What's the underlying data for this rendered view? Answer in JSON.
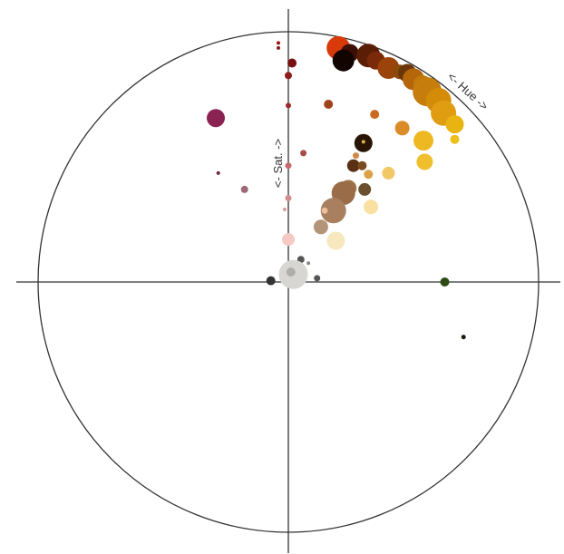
{
  "chart_data": {
    "type": "scatter",
    "title": "",
    "polar": true,
    "labels": {
      "hue": "<- Hue ->",
      "saturation": "<- Sat. ->"
    },
    "x_range": [
      -1,
      1
    ],
    "y_range": [
      -1,
      1
    ],
    "points": [
      {
        "x": -0.04,
        "y": 0.955,
        "r": 2,
        "color": "#a01010"
      },
      {
        "x": -0.04,
        "y": 0.935,
        "r": 2,
        "color": "#8b1a1a"
      },
      {
        "x": 0.015,
        "y": 0.875,
        "r": 5,
        "color": "#7a0f0f"
      },
      {
        "x": 0.0,
        "y": 0.825,
        "r": 4,
        "color": "#8e1e1e"
      },
      {
        "x": 0.0,
        "y": 0.705,
        "r": 3,
        "color": "#9b2a2a"
      },
      {
        "x": -0.29,
        "y": 0.655,
        "r": 10,
        "color": "#8b2352"
      },
      {
        "x": -0.28,
        "y": 0.435,
        "r": 2,
        "color": "#6a2a3a"
      },
      {
        "x": -0.175,
        "y": 0.37,
        "r": 4,
        "color": "#a06878"
      },
      {
        "x": 0.06,
        "y": 0.515,
        "r": 3.5,
        "color": "#a84b4b"
      },
      {
        "x": 0.0,
        "y": 0.465,
        "r": 3.5,
        "color": "#c46a6a"
      },
      {
        "x": 0.0,
        "y": 0.335,
        "r": 3.5,
        "color": "#d48c8c"
      },
      {
        "x": -0.015,
        "y": 0.29,
        "r": 2,
        "color": "#e09a9a"
      },
      {
        "x": 0.0,
        "y": 0.17,
        "r": 7,
        "color": "#f6c9c4"
      },
      {
        "x": 0.16,
        "y": 0.71,
        "r": 5,
        "color": "#a0421c"
      },
      {
        "x": 0.2,
        "y": 0.935,
        "r": 13,
        "color": "#d93a0a"
      },
      {
        "x": 0.245,
        "y": 0.915,
        "r": 10,
        "color": "#3b0f05"
      },
      {
        "x": 0.22,
        "y": 0.885,
        "r": 12,
        "color": "#120400"
      },
      {
        "x": 0.32,
        "y": 0.905,
        "r": 13,
        "color": "#5a1e05"
      },
      {
        "x": 0.35,
        "y": 0.885,
        "r": 10,
        "color": "#7a2a08"
      },
      {
        "x": 0.4,
        "y": 0.855,
        "r": 12,
        "color": "#9b4308"
      },
      {
        "x": 0.445,
        "y": 0.84,
        "r": 8,
        "color": "#8a4a0a"
      },
      {
        "x": 0.475,
        "y": 0.835,
        "r": 10,
        "color": "#6b3508"
      },
      {
        "x": 0.5,
        "y": 0.81,
        "r": 12,
        "color": "#b5650a"
      },
      {
        "x": 0.535,
        "y": 0.79,
        "r": 10,
        "color": "#c07a0a"
      },
      {
        "x": 0.555,
        "y": 0.76,
        "r": 16,
        "color": "#c67d0b"
      },
      {
        "x": 0.6,
        "y": 0.725,
        "r": 14,
        "color": "#d48b08"
      },
      {
        "x": 0.62,
        "y": 0.675,
        "r": 14,
        "color": "#e09d12"
      },
      {
        "x": 0.665,
        "y": 0.63,
        "r": 10,
        "color": "#e8b412"
      },
      {
        "x": 0.345,
        "y": 0.67,
        "r": 5,
        "color": "#c96a20"
      },
      {
        "x": 0.455,
        "y": 0.615,
        "r": 8,
        "color": "#d98c28"
      },
      {
        "x": 0.54,
        "y": 0.565,
        "r": 11,
        "color": "#eeb823"
      },
      {
        "x": 0.665,
        "y": 0.57,
        "r": 5,
        "color": "#f0be1a"
      },
      {
        "x": 0.3,
        "y": 0.555,
        "r": 10,
        "color": "#2a1405"
      },
      {
        "x": 0.3,
        "y": 0.56,
        "r": 2,
        "color": "#e0b050"
      },
      {
        "x": 0.545,
        "y": 0.48,
        "r": 9,
        "color": "#f0bf2d"
      },
      {
        "x": 0.27,
        "y": 0.505,
        "r": 3.5,
        "color": "#d08a4a"
      },
      {
        "x": 0.26,
        "y": 0.465,
        "r": 7,
        "color": "#5a3015"
      },
      {
        "x": 0.295,
        "y": 0.465,
        "r": 5,
        "color": "#7a4a20"
      },
      {
        "x": 0.32,
        "y": 0.43,
        "r": 5,
        "color": "#dca24a"
      },
      {
        "x": 0.4,
        "y": 0.435,
        "r": 7,
        "color": "#f2c865"
      },
      {
        "x": 0.24,
        "y": 0.375,
        "r": 9,
        "color": "#a07045"
      },
      {
        "x": 0.22,
        "y": 0.355,
        "r": 13,
        "color": "#9a6c48"
      },
      {
        "x": 0.305,
        "y": 0.37,
        "r": 7,
        "color": "#6b5030"
      },
      {
        "x": 0.18,
        "y": 0.285,
        "r": 14,
        "color": "#a88060"
      },
      {
        "x": 0.145,
        "y": 0.285,
        "r": 3.5,
        "color": "#e8c0a0"
      },
      {
        "x": 0.33,
        "y": 0.3,
        "r": 8,
        "color": "#f8e0a0"
      },
      {
        "x": 0.13,
        "y": 0.22,
        "r": 8,
        "color": "#b49478"
      },
      {
        "x": 0.19,
        "y": 0.165,
        "r": 10,
        "color": "#f8e8c0"
      },
      {
        "x": 0.05,
        "y": 0.09,
        "r": 4,
        "color": "#555555"
      },
      {
        "x": 0.08,
        "y": 0.075,
        "r": 2,
        "color": "#888888"
      },
      {
        "x": 0.02,
        "y": 0.03,
        "r": 16,
        "color": "#d8d6d3"
      },
      {
        "x": 0.01,
        "y": 0.04,
        "r": 5,
        "color": "#b0aeac"
      },
      {
        "x": 0.115,
        "y": 0.015,
        "r": 3.5,
        "color": "#555555"
      },
      {
        "x": -0.07,
        "y": 0.005,
        "r": 5,
        "color": "#333333"
      },
      {
        "x": 0.625,
        "y": 0.0,
        "r": 5,
        "color": "#2e4a14"
      },
      {
        "x": 0.7,
        "y": -0.22,
        "r": 2.5,
        "color": "#1a1a10"
      }
    ]
  }
}
